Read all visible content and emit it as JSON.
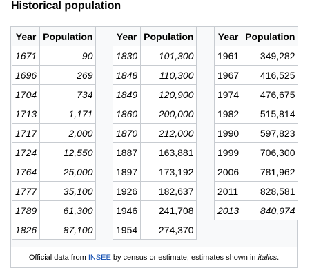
{
  "title": "Historical population",
  "groups": [
    {
      "header": [
        "Year",
        "Population"
      ],
      "rows": [
        {
          "year": "1671",
          "population": "90",
          "estimate": true
        },
        {
          "year": "1696",
          "population": "269",
          "estimate": true
        },
        {
          "year": "1704",
          "population": "734",
          "estimate": true
        },
        {
          "year": "1713",
          "population": "1,171",
          "estimate": true
        },
        {
          "year": "1717",
          "population": "2,000",
          "estimate": true
        },
        {
          "year": "1724",
          "population": "12,550",
          "estimate": true
        },
        {
          "year": "1764",
          "population": "25,000",
          "estimate": true
        },
        {
          "year": "1777",
          "population": "35,100",
          "estimate": true
        },
        {
          "year": "1789",
          "population": "61,300",
          "estimate": true
        },
        {
          "year": "1826",
          "population": "87,100",
          "estimate": true
        }
      ]
    },
    {
      "header": [
        "Year",
        "Population"
      ],
      "rows": [
        {
          "year": "1830",
          "population": "101,300",
          "estimate": true
        },
        {
          "year": "1848",
          "population": "110,300",
          "estimate": true
        },
        {
          "year": "1849",
          "population": "120,900",
          "estimate": true
        },
        {
          "year": "1860",
          "population": "200,000",
          "estimate": true
        },
        {
          "year": "1870",
          "population": "212,000",
          "estimate": true
        },
        {
          "year": "1887",
          "population": "163,881",
          "estimate": false
        },
        {
          "year": "1897",
          "population": "173,192",
          "estimate": false
        },
        {
          "year": "1926",
          "population": "182,637",
          "estimate": false
        },
        {
          "year": "1946",
          "population": "241,708",
          "estimate": false
        },
        {
          "year": "1954",
          "population": "274,370",
          "estimate": false
        }
      ]
    },
    {
      "header": [
        "Year",
        "Population"
      ],
      "rows": [
        {
          "year": "1961",
          "population": "349,282",
          "estimate": false
        },
        {
          "year": "1967",
          "population": "416,525",
          "estimate": false
        },
        {
          "year": "1974",
          "population": "476,675",
          "estimate": false
        },
        {
          "year": "1982",
          "population": "515,814",
          "estimate": false
        },
        {
          "year": "1990",
          "population": "597,823",
          "estimate": false
        },
        {
          "year": "1999",
          "population": "706,300",
          "estimate": false
        },
        {
          "year": "2006",
          "population": "781,962",
          "estimate": false
        },
        {
          "year": "2011",
          "population": "828,581",
          "estimate": false
        },
        {
          "year": "2013",
          "population": "840,974",
          "estimate": true
        }
      ]
    }
  ],
  "footer": [
    {
      "text": "Official data from ",
      "style": "plain"
    },
    {
      "text": "INSEE",
      "style": "link"
    },
    {
      "text": " by census or estimate; estimates shown in ",
      "style": "plain"
    },
    {
      "text": "italics",
      "style": "italic"
    },
    {
      "text": ".",
      "style": "plain"
    }
  ]
}
